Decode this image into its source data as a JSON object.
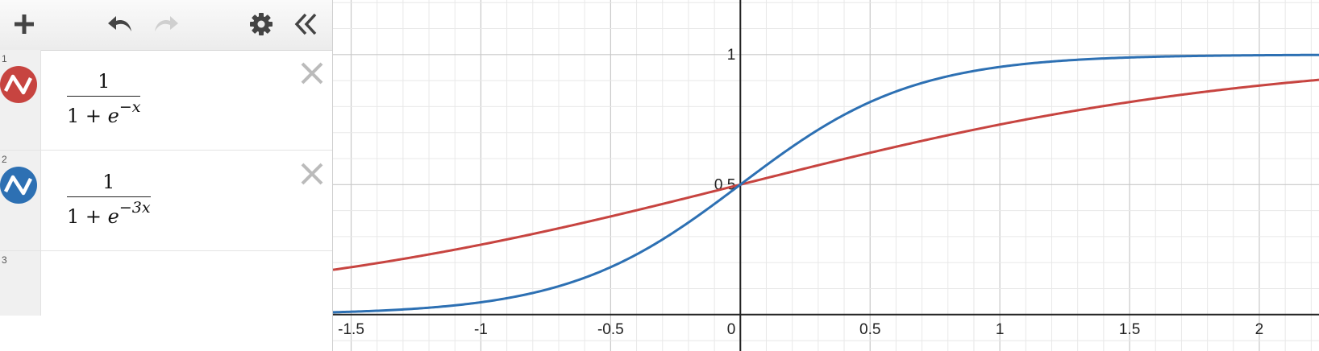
{
  "toolbar": {
    "add_icon": "plus-icon",
    "undo_icon": "undo-icon",
    "redo_icon": "redo-icon",
    "settings_icon": "gear-icon",
    "collapse_icon": "double-chevron-left-icon"
  },
  "expressions": [
    {
      "index": "1",
      "numerator": "1",
      "denom_base": "1 + ",
      "denom_e": "e",
      "denom_exp": "−x",
      "color": "#c74440"
    },
    {
      "index": "2",
      "numerator": "1",
      "denom_base": "1 + ",
      "denom_e": "e",
      "denom_exp": "−3x",
      "color": "#2d70b3"
    },
    {
      "index": "3"
    }
  ],
  "chart_data": {
    "type": "line",
    "x_range": [
      -1.57,
      2.23
    ],
    "y_range": [
      -0.14,
      1.21
    ],
    "x_ticks": [
      "-1.5",
      "-1",
      "-0.5",
      "0",
      "0.5",
      "1",
      "1.5",
      "2"
    ],
    "y_ticks": [
      "0.5",
      "1"
    ],
    "grid": true,
    "series": [
      {
        "expression": "1/(1+e^(-x))",
        "k": 1,
        "color": "#c74440"
      },
      {
        "expression": "1/(1+e^(-3x))",
        "k": 3,
        "color": "#2d70b3"
      }
    ]
  }
}
